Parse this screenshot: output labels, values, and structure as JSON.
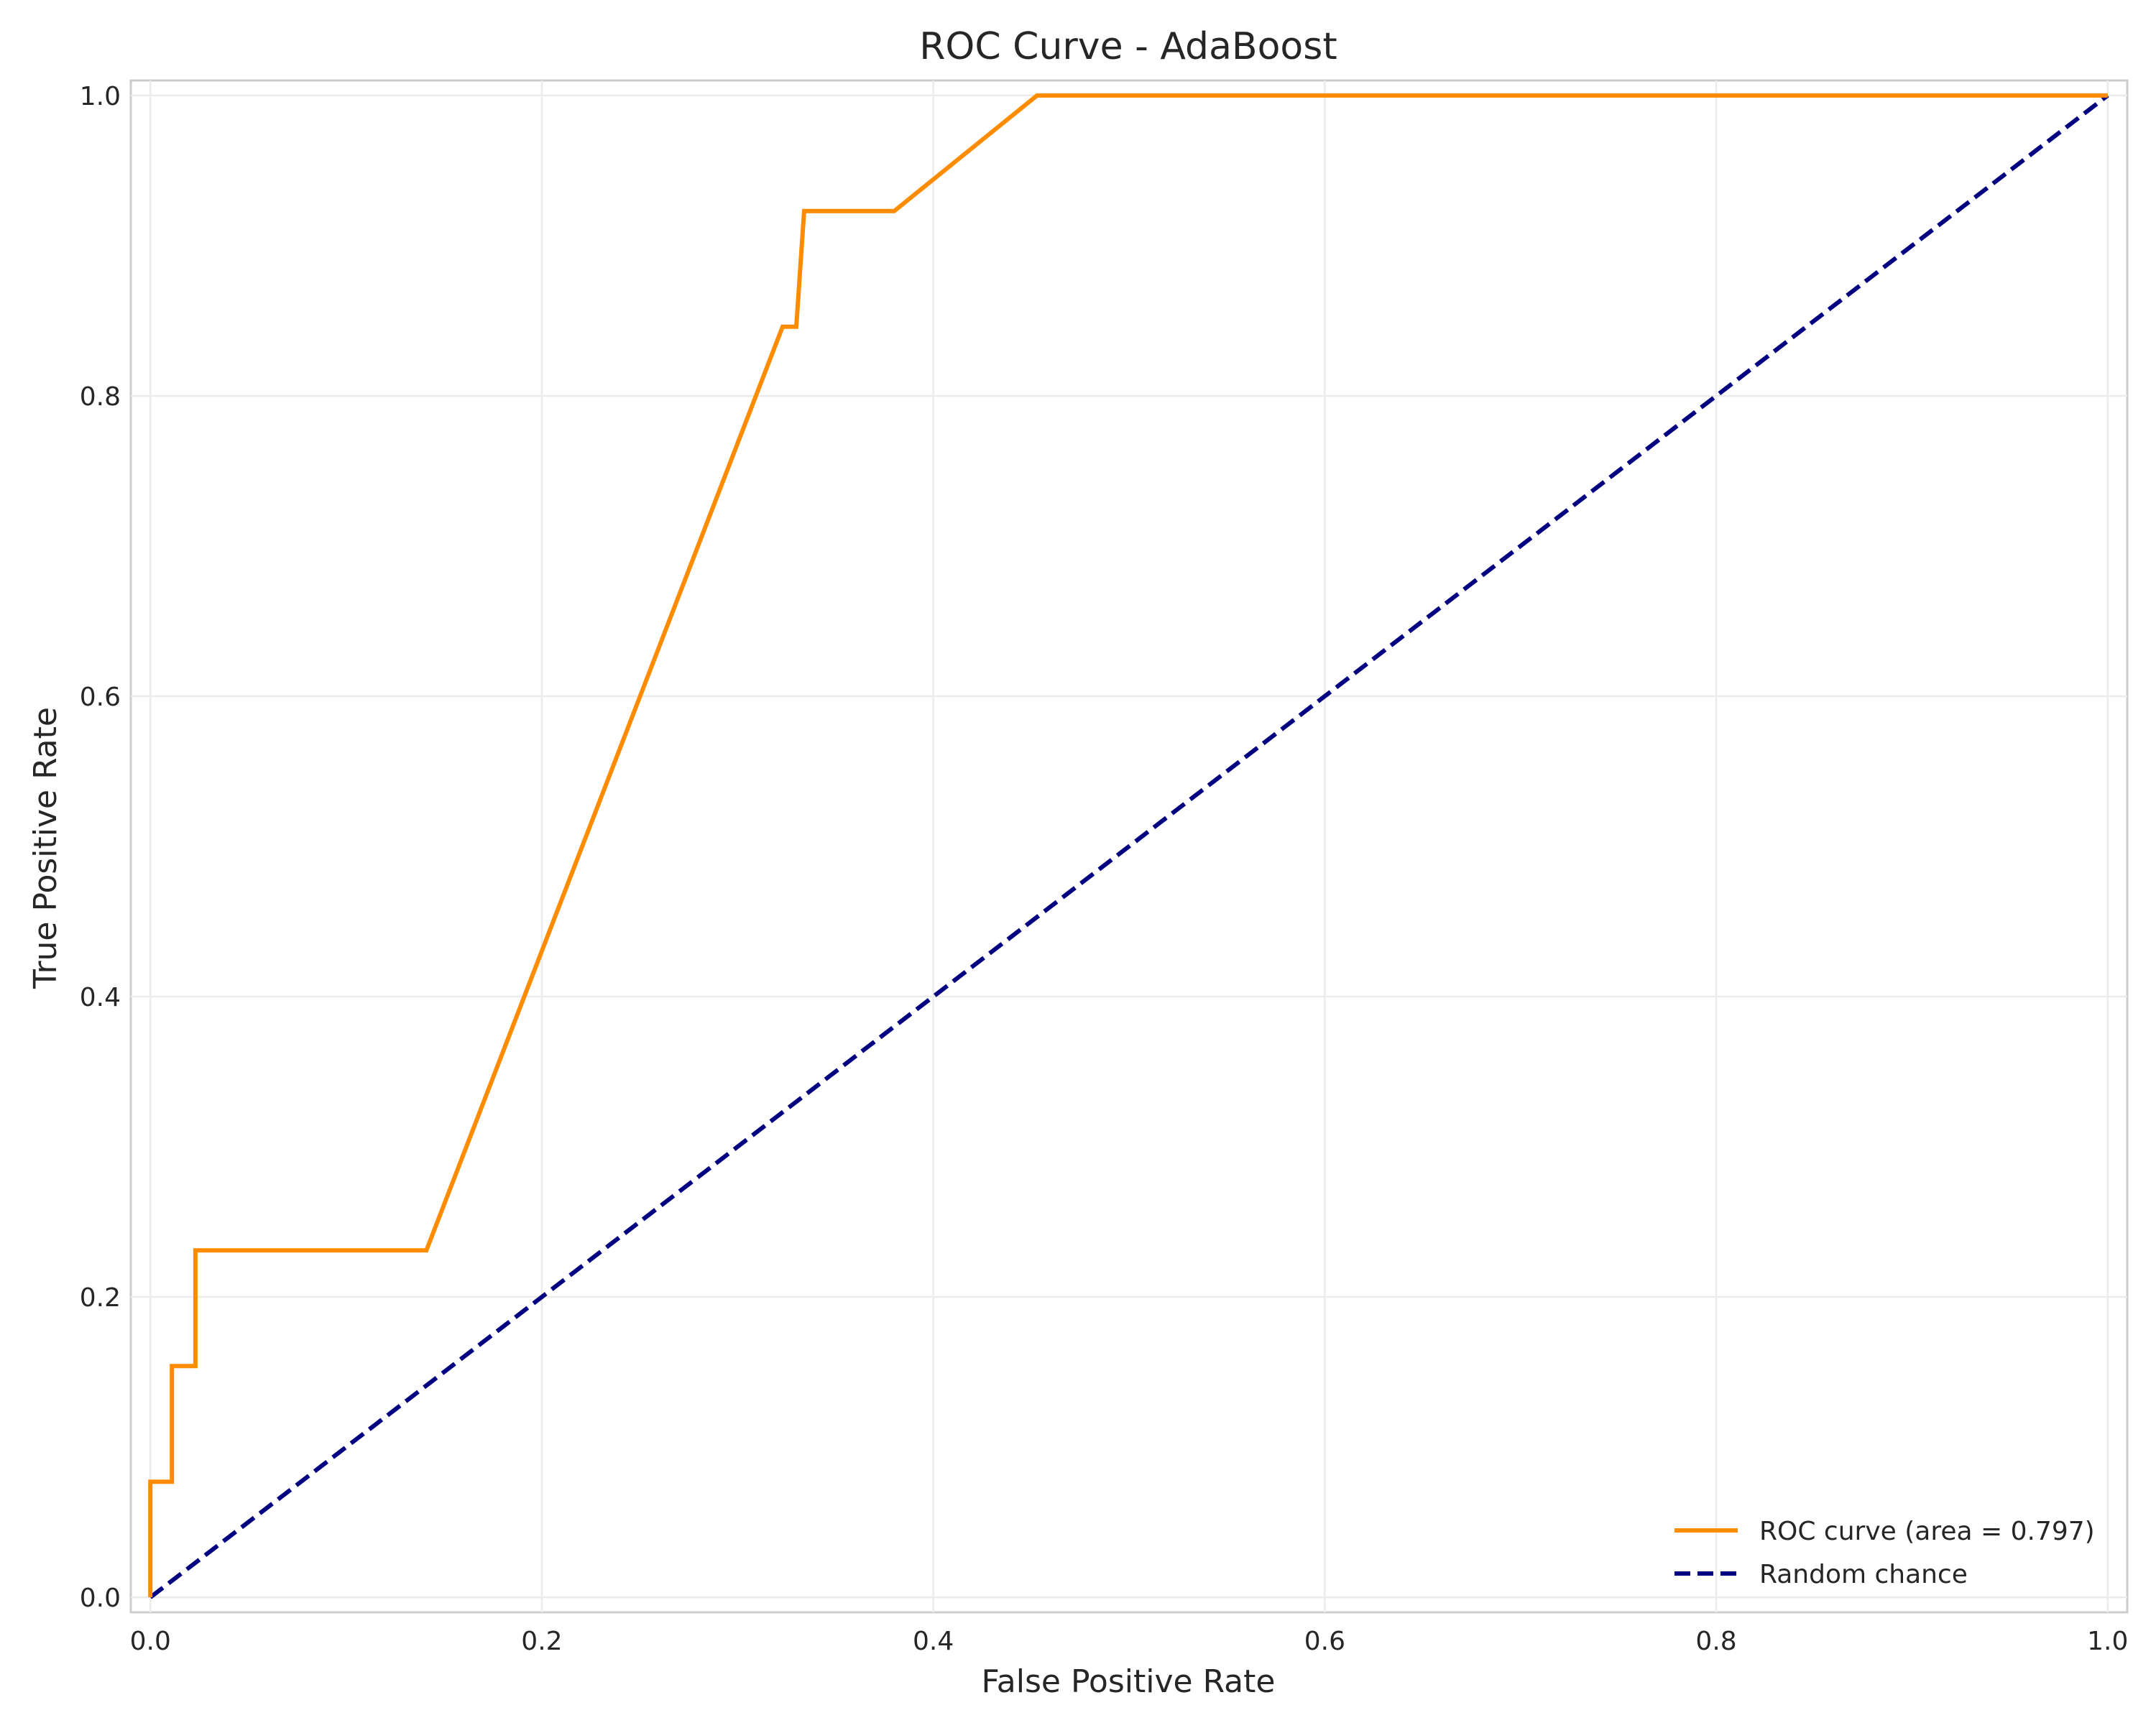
{
  "chart_data": {
    "type": "line",
    "title": "ROC Curve - AdaBoost",
    "xlabel": "False Positive Rate",
    "ylabel": "True Positive Rate",
    "xlim": [
      -0.01,
      1.01
    ],
    "ylim": [
      -0.01,
      1.01
    ],
    "x_ticks": [
      0.0,
      0.2,
      0.4,
      0.6,
      0.8,
      1.0
    ],
    "y_ticks": [
      0.0,
      0.2,
      0.4,
      0.6,
      0.8,
      1.0
    ],
    "x_tick_labels": [
      "0.0",
      "0.2",
      "0.4",
      "0.6",
      "0.8",
      "1.0"
    ],
    "y_tick_labels": [
      "0.0",
      "0.2",
      "0.4",
      "0.6",
      "0.8",
      "1.0"
    ],
    "grid": true,
    "legend_position": "lower-right",
    "series": [
      {
        "name": "ROC curve (area = 0.797)",
        "color": "#ff8c00",
        "line_style": "solid",
        "x": [
          0.0,
          0.0,
          0.011,
          0.011,
          0.023,
          0.023,
          0.141,
          0.323,
          0.33,
          0.334,
          0.38,
          0.453,
          1.0
        ],
        "y": [
          0.0,
          0.077,
          0.077,
          0.154,
          0.154,
          0.231,
          0.231,
          0.846,
          0.846,
          0.923,
          0.923,
          1.0,
          1.0
        ]
      },
      {
        "name": "Random chance",
        "color": "#000080",
        "line_style": "dashed",
        "x": [
          0.0,
          1.0
        ],
        "y": [
          0.0,
          1.0
        ]
      }
    ]
  }
}
